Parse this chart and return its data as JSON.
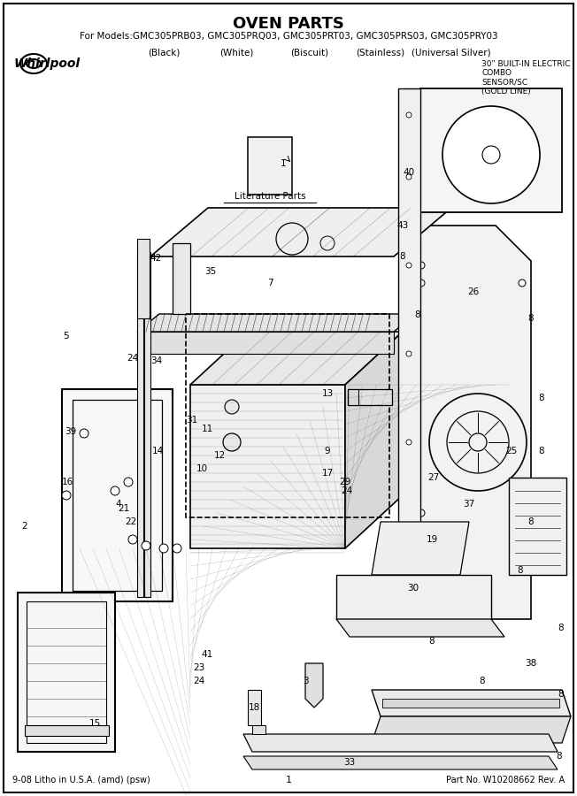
{
  "title": "OVEN PARTS",
  "subtitle": "For Models:GMC305PRB03, GMC305PRQ03, GMC305PRT03, GMC305PRS03, GMC305PRY03",
  "color_line_black": "(Black)",
  "color_line_white": "(White)",
  "color_line_biscuit": "(Biscuit)",
  "color_line_stainless": "(Stainless)",
  "color_line_universal": "(Universal Silver)",
  "top_right_text": "30\" BUILT-IN ELECTRIC\nCOMBO\nSENSOR/SC\n(GOLD LINE)",
  "whirlpool_logo": "Whirlpool",
  "bottom_left": "9-08 Litho in U.S.A. (amd) (psw)",
  "bottom_center": "1",
  "bottom_right": "Part No. W10208662 Rev. A",
  "literature_parts": "Literature Parts",
  "bg_color": "#ffffff",
  "border_color": "#000000",
  "text_color": "#000000"
}
